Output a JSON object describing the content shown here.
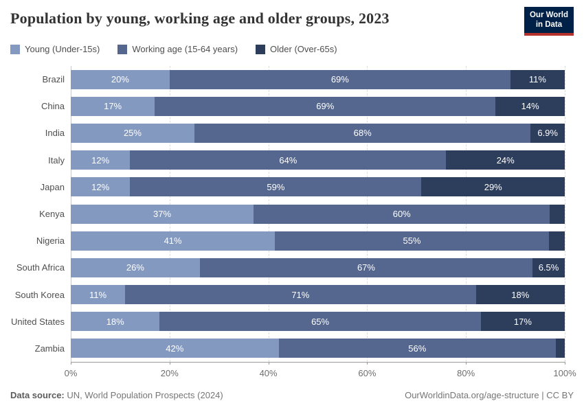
{
  "header": {
    "title": "Population by young, working age and older groups, 2023",
    "logo_line1": "Our World",
    "logo_line2": "in Data",
    "logo_bg_color": "#002147",
    "logo_accent_color": "#b5312c"
  },
  "chart_data": {
    "type": "bar",
    "stacked": true,
    "orientation": "horizontal",
    "title": "Population by young, working age and older groups, 2023",
    "categories": [
      "Brazil",
      "China",
      "India",
      "Italy",
      "Japan",
      "Kenya",
      "Nigeria",
      "South Africa",
      "South Korea",
      "United States",
      "Zambia"
    ],
    "series": [
      {
        "name": "Young (Under-15s)",
        "color": "#8499c0",
        "values": [
          20,
          17,
          25,
          12,
          12,
          37,
          41,
          26,
          11,
          18,
          42
        ],
        "labels": [
          "20%",
          "17%",
          "25%",
          "12%",
          "12%",
          "37%",
          "41%",
          "26%",
          "11%",
          "18%",
          "42%"
        ]
      },
      {
        "name": "Working age (15-64 years)",
        "color": "#55678f",
        "values": [
          69,
          69,
          68,
          64,
          59,
          60,
          55,
          67,
          71,
          65,
          56
        ],
        "labels": [
          "69%",
          "69%",
          "68%",
          "64%",
          "59%",
          "60%",
          "55%",
          "67%",
          "71%",
          "65%",
          "56%"
        ]
      },
      {
        "name": "Older (Over-65s)",
        "color": "#2d3d5c",
        "values": [
          11,
          14,
          6.9,
          24,
          29,
          3,
          3.2,
          6.5,
          18,
          17,
          1.8
        ],
        "labels": [
          "11%",
          "14%",
          "6.9%",
          "24%",
          "29%",
          "",
          "",
          "6.5%",
          "18%",
          "17%",
          ""
        ]
      }
    ],
    "xlabel": "",
    "ylabel": "",
    "xlim": [
      0,
      100
    ],
    "x_ticks": [
      "0%",
      "20%",
      "40%",
      "60%",
      "80%",
      "100%"
    ],
    "x_tick_positions": [
      0,
      20,
      40,
      60,
      80,
      100
    ],
    "grid": true,
    "gridline_color": "#dcdcdc",
    "legend_position": "top"
  },
  "footer": {
    "source_label": "Data source:",
    "source_text": " UN, World Population Prospects (2024)",
    "credit_text": "OurWorldinData.org/age-structure | CC BY"
  }
}
